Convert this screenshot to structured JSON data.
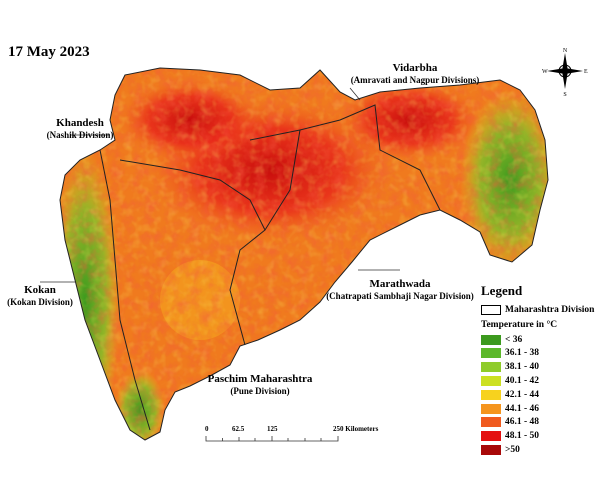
{
  "date": "17 May 2023",
  "divisions": {
    "vidarbha": {
      "name": "Vidarbha",
      "sub": "(Amravati and Nagpur Divisions)"
    },
    "khandesh": {
      "name": "Khandesh",
      "sub": "(Nashik Division)"
    },
    "kokan": {
      "name": "Kokan",
      "sub": "(Kokan Division)"
    },
    "marathwada": {
      "name": "Marathwada",
      "sub": "(Chatrapati Sambhaji Nagar Division)"
    },
    "paschim": {
      "name": "Paschim Maharashtra",
      "sub": "(Pune Division)"
    }
  },
  "legend": {
    "title": "Legend",
    "boundary": "Maharashtra Division",
    "temp_title": "Temperature in °C",
    "classes": [
      {
        "label": "< 36",
        "color": "#3c9a1e"
      },
      {
        "label": "36.1 - 38",
        "color": "#5cb82a"
      },
      {
        "label": "38.1 - 40",
        "color": "#8fcc2a"
      },
      {
        "label": "40.1 - 42",
        "color": "#cce022"
      },
      {
        "label": "42.1 - 44",
        "color": "#f7d21e"
      },
      {
        "label": "44.1 - 46",
        "color": "#f5951e"
      },
      {
        "label": "46.1 - 48",
        "color": "#f05a1e"
      },
      {
        "label": "48.1 - 50",
        "color": "#e41010"
      },
      {
        "label": ">50",
        "color": "#a80808"
      }
    ]
  },
  "scale": {
    "ticks": [
      "0",
      "62.5",
      "125",
      "250 Kilometers"
    ]
  },
  "compass": {
    "n": "N",
    "s": "S",
    "e": "E",
    "w": "W"
  }
}
